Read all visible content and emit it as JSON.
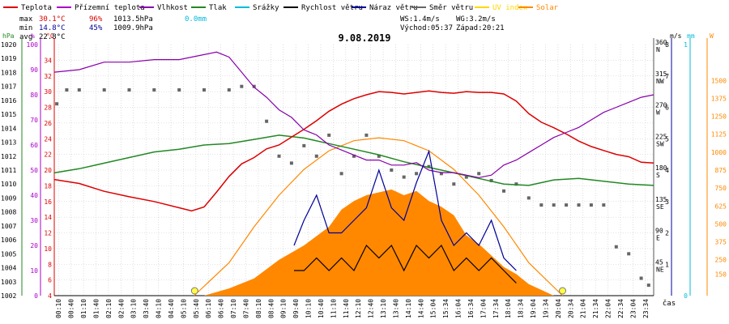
{
  "legend": [
    {
      "label": "Teplota",
      "color": "#dd0000"
    },
    {
      "label": "Přízemní teplota",
      "color": "#aa00cc"
    },
    {
      "label": "Vlhkost",
      "color": "#8800aa"
    },
    {
      "label": "Tlak",
      "color": "#228822"
    },
    {
      "label": "Srážky",
      "color": "#00bbdd"
    },
    {
      "label": "Rychlost větru",
      "color": "#000000"
    },
    {
      "label": "Náraz větru",
      "color": "#000099"
    },
    {
      "label": "Směr větru",
      "color": "#666666"
    },
    {
      "label": "UV index",
      "color": "#ffd700"
    },
    {
      "label": "Solar",
      "color": "#ff8800"
    }
  ],
  "stats": {
    "max_label": "max",
    "max_temp": "30.1°C",
    "max_hum": "96%",
    "max_press": "1013.5hPa",
    "max_rain": "0.0mm",
    "min_label": "min",
    "min_temp": "14.8°C",
    "min_hum": "45%",
    "min_press": "1009.9hPa",
    "avg_label": "avg",
    "avg_temp": "22.8°C",
    "ws": "WS:1.4m/s",
    "wg": "WG:3.2m/s",
    "sunrise": "Východ:05:37",
    "sunset": "Západ:20:21"
  },
  "chart_data": {
    "type": "line",
    "title": "9.08.2019",
    "xlabel": "čas",
    "x_ticks": [
      "00:10",
      "00:40",
      "01:10",
      "01:40",
      "02:10",
      "02:40",
      "03:10",
      "03:40",
      "04:10",
      "04:40",
      "05:10",
      "05:40",
      "06:10",
      "06:40",
      "07:10",
      "07:40",
      "08:10",
      "08:40",
      "09:10",
      "09:40",
      "10:10",
      "10:40",
      "11:10",
      "11:40",
      "12:10",
      "12:40",
      "13:10",
      "13:40",
      "14:10",
      "14:40",
      "15:04",
      "15:34",
      "16:04",
      "16:34",
      "17:04",
      "17:34",
      "18:04",
      "18:34",
      "19:04",
      "19:34",
      "20:04",
      "20:34",
      "21:04",
      "21:34",
      "22:04",
      "22:34",
      "23:04",
      "23:34"
    ],
    "axes": {
      "hPa": {
        "label": "hPa",
        "min": 1002,
        "max": 1020,
        "ticks": [
          1002,
          1003,
          1004,
          1005,
          1006,
          1007,
          1008,
          1009,
          1010,
          1011,
          1012,
          1013,
          1014,
          1015,
          1016,
          1017,
          1018,
          1019,
          1020
        ]
      },
      "percent": {
        "label": "%",
        "min": 0,
        "max": 100,
        "ticks": [
          0,
          10,
          20,
          30,
          40,
          50,
          60,
          70,
          80,
          90,
          100
        ]
      },
      "celsius": {
        "label": "°C",
        "min": 4,
        "max": 36,
        "ticks": [
          4,
          6,
          8,
          10,
          12,
          14,
          16,
          18,
          20,
          22,
          24,
          26,
          28,
          30,
          32,
          34
        ]
      },
      "direction": {
        "label": "°",
        "min": 0,
        "max": 360,
        "ticks": [
          45,
          90,
          135,
          180,
          225,
          270,
          315,
          360
        ],
        "tick_labels": [
          "45",
          "90",
          "135",
          "180",
          "225",
          "270",
          "315",
          "360"
        ],
        "compass": [
          "NE",
          "E",
          "SE",
          "S",
          "SW",
          "W",
          "NW",
          "N"
        ]
      },
      "ms": {
        "label": "m/s",
        "min": 0,
        "max": 8,
        "ticks": [
          1,
          2,
          3,
          4,
          5,
          6,
          7,
          8
        ]
      },
      "mm": {
        "label": "mm",
        "min": 0,
        "max": 1,
        "ticks": [
          0,
          1
        ]
      },
      "watt": {
        "label": "W",
        "min": 0,
        "max": 1750,
        "ticks": [
          150,
          250,
          375,
          500,
          625,
          750,
          875,
          1000,
          1125,
          1250,
          1375,
          1500
        ]
      }
    },
    "series": [
      {
        "name": "Teplota",
        "axis": "celsius",
        "color": "#dd0000",
        "x": [
          0,
          1,
          2,
          3,
          4,
          5,
          5.5,
          6,
          6.5,
          7,
          7.5,
          8,
          8.5,
          9,
          9.5,
          10,
          10.5,
          11,
          11.5,
          12,
          12.5,
          13,
          13.5,
          14,
          14.5,
          15,
          15.5,
          16,
          16.5,
          17,
          17.5,
          18,
          18.5,
          19,
          19.5,
          20,
          20.5,
          21,
          21.5,
          22,
          22.5,
          23,
          23.5,
          24
        ],
        "y": [
          18.8,
          18.3,
          17.3,
          16.6,
          16.0,
          15.2,
          14.8,
          15.3,
          17.2,
          19.2,
          20.8,
          21.6,
          22.7,
          23.2,
          24.2,
          25.2,
          26.3,
          27.5,
          28.4,
          29.1,
          29.6,
          30.0,
          29.9,
          29.7,
          29.9,
          30.1,
          29.9,
          29.8,
          30.0,
          29.9,
          29.9,
          29.7,
          28.8,
          27.2,
          26.1,
          25.4,
          24.6,
          23.7,
          23.0,
          22.5,
          22.0,
          21.7,
          21.0,
          20.9
        ]
      },
      {
        "name": "Vlhkost",
        "axis": "percent",
        "color": "#8800aa",
        "x": [
          0,
          1,
          2,
          3,
          4,
          5,
          6,
          6.5,
          7,
          7.5,
          8,
          8.5,
          9,
          9.5,
          10,
          10.5,
          11,
          11.5,
          12,
          12.5,
          13,
          13.5,
          14,
          14.5,
          15,
          15.5,
          16,
          16.5,
          17,
          17.5,
          18,
          18.5,
          19,
          19.5,
          20,
          20.5,
          21,
          21.5,
          22,
          22.5,
          23,
          23.5,
          24
        ],
        "y": [
          89,
          90,
          93,
          93,
          94,
          94,
          96,
          97,
          95,
          89,
          83,
          79,
          74,
          71,
          66,
          64,
          60,
          58,
          56,
          54,
          54,
          52,
          52,
          53,
          50,
          49,
          49,
          48,
          47,
          48,
          52,
          54,
          57,
          60,
          63,
          65,
          67,
          70,
          73,
          75,
          77,
          79,
          80
        ]
      },
      {
        "name": "Tlak",
        "axis": "hPa",
        "color": "#228822",
        "x": [
          0,
          1,
          2,
          3,
          4,
          5,
          6,
          7,
          8,
          9,
          10,
          11,
          12,
          13,
          14,
          15,
          16,
          17,
          18,
          19,
          19.5,
          20,
          21,
          22,
          23,
          24
        ],
        "y": [
          1010.8,
          1011.1,
          1011.5,
          1011.9,
          1012.3,
          1012.5,
          1012.8,
          1012.9,
          1013.2,
          1013.5,
          1013.3,
          1012.9,
          1012.5,
          1012.1,
          1011.6,
          1011.2,
          1010.8,
          1010.4,
          1010.0,
          1009.9,
          1010.1,
          1010.3,
          1010.4,
          1010.2,
          1010.0,
          1009.9
        ]
      },
      {
        "name": "Rychlost větru",
        "axis": "ms",
        "color": "#000000",
        "x": [
          9.6,
          10,
          10.5,
          11,
          11.5,
          12,
          12.5,
          13,
          13.5,
          14,
          14.5,
          15,
          15.5,
          16,
          16.5,
          17,
          17.5,
          18,
          18.5
        ],
        "y": [
          0.8,
          0.8,
          1.2,
          0.8,
          1.2,
          0.8,
          1.6,
          1.2,
          1.6,
          0.8,
          1.6,
          1.2,
          1.6,
          0.8,
          1.2,
          0.8,
          1.2,
          0.8,
          0.4
        ]
      },
      {
        "name": "Náraz větru",
        "axis": "ms",
        "color": "#000099",
        "x": [
          9.6,
          10,
          10.5,
          11,
          11.5,
          12,
          12.5,
          13,
          13.5,
          14,
          14.5,
          15,
          15.5,
          16,
          16.5,
          17,
          17.5,
          18,
          18.5
        ],
        "y": [
          1.6,
          2.4,
          3.2,
          2.0,
          2.0,
          2.4,
          2.8,
          4.0,
          2.8,
          2.4,
          3.6,
          4.6,
          2.4,
          1.6,
          2.0,
          1.6,
          2.4,
          1.2,
          0.8
        ]
      },
      {
        "name": "Solar",
        "axis": "watt",
        "color": "#ff8800",
        "x": [
          6,
          7,
          8,
          9,
          10,
          11,
          11.5,
          12,
          12.5,
          13,
          13.5,
          14,
          14.5,
          15,
          15.5,
          16,
          16.5,
          17,
          17.5,
          18,
          18.5,
          19,
          19.5,
          20
        ],
        "y": [
          0,
          50,
          120,
          250,
          350,
          480,
          600,
          660,
          700,
          720,
          740,
          700,
          730,
          660,
          620,
          560,
          420,
          360,
          280,
          200,
          150,
          80,
          40,
          0
        ]
      },
      {
        "name": "Solar max",
        "axis": "watt",
        "color": "#ff8800",
        "x": [
          5.6,
          7,
          8,
          9,
          10,
          11,
          12,
          13,
          14,
          15,
          16,
          17,
          18,
          19,
          20.35
        ],
        "y": [
          0,
          230,
          480,
          700,
          880,
          1010,
          1080,
          1100,
          1080,
          1010,
          880,
          700,
          480,
          230,
          0
        ]
      },
      {
        "name": "Směr větru",
        "axis": "direction",
        "color": "#666666",
        "x": [
          0.1,
          0.5,
          1,
          2,
          3,
          4,
          5,
          6,
          7,
          7.5,
          8,
          8.5,
          9,
          9.5,
          10,
          10.5,
          11,
          11.5,
          12,
          12.5,
          13,
          13.5,
          14,
          14.5,
          15,
          15.5,
          16,
          16.5,
          17,
          17.5,
          18,
          18.5,
          19,
          19.5,
          20,
          20.5,
          21,
          21.5,
          22,
          22.5,
          23,
          23.5,
          23.8
        ],
        "y": [
          275,
          295,
          295,
          295,
          295,
          295,
          295,
          295,
          295,
          300,
          300,
          250,
          200,
          190,
          215,
          200,
          230,
          175,
          200,
          230,
          200,
          180,
          170,
          175,
          185,
          175,
          160,
          170,
          175,
          165,
          150,
          160,
          140,
          130,
          130,
          130,
          130,
          130,
          130,
          70,
          60,
          25,
          15
        ]
      }
    ],
    "markers": [
      {
        "name": "sunrise-marker",
        "x": 5.62
      },
      {
        "name": "sunset-marker",
        "x": 20.35
      }
    ]
  }
}
